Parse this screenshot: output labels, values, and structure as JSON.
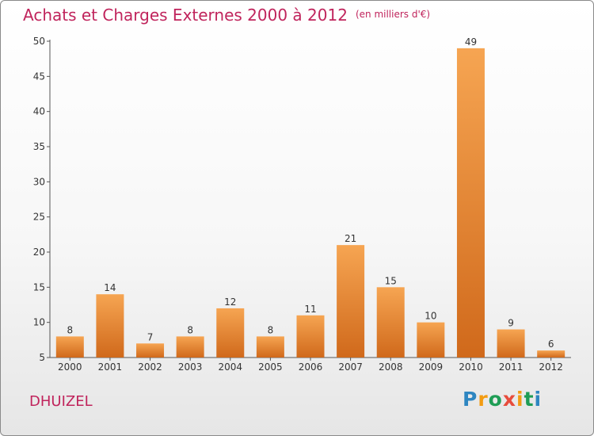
{
  "header": {
    "title": "Achats et Charges Externes 2000 à 2012",
    "unit": "(en milliers d'€)"
  },
  "footer": {
    "place": "DHUIZEL",
    "logo": "Proxiti",
    "logo_colors": [
      "#2e86c1",
      "#f39c12",
      "#1f9d55",
      "#e74c3c",
      "#f39c12",
      "#1f9d55",
      "#2e86c1"
    ]
  },
  "colors": {
    "bar_top": "#f6a552",
    "bar_bottom": "#d0691b",
    "title": "#c0245c"
  },
  "chart_data": {
    "type": "bar",
    "categories": [
      "2000",
      "2001",
      "2002",
      "2003",
      "2004",
      "2005",
      "2006",
      "2007",
      "2008",
      "2009",
      "2010",
      "2011",
      "2012"
    ],
    "values": [
      8,
      14,
      7,
      8,
      12,
      8,
      11,
      21,
      15,
      10,
      49,
      9,
      6
    ],
    "title": "Achats et Charges Externes 2000 à 2012",
    "ylim": [
      5,
      50
    ],
    "yticks": [
      5,
      10,
      15,
      20,
      25,
      30,
      35,
      40,
      45,
      50
    ],
    "grid": false,
    "legend": "none"
  }
}
